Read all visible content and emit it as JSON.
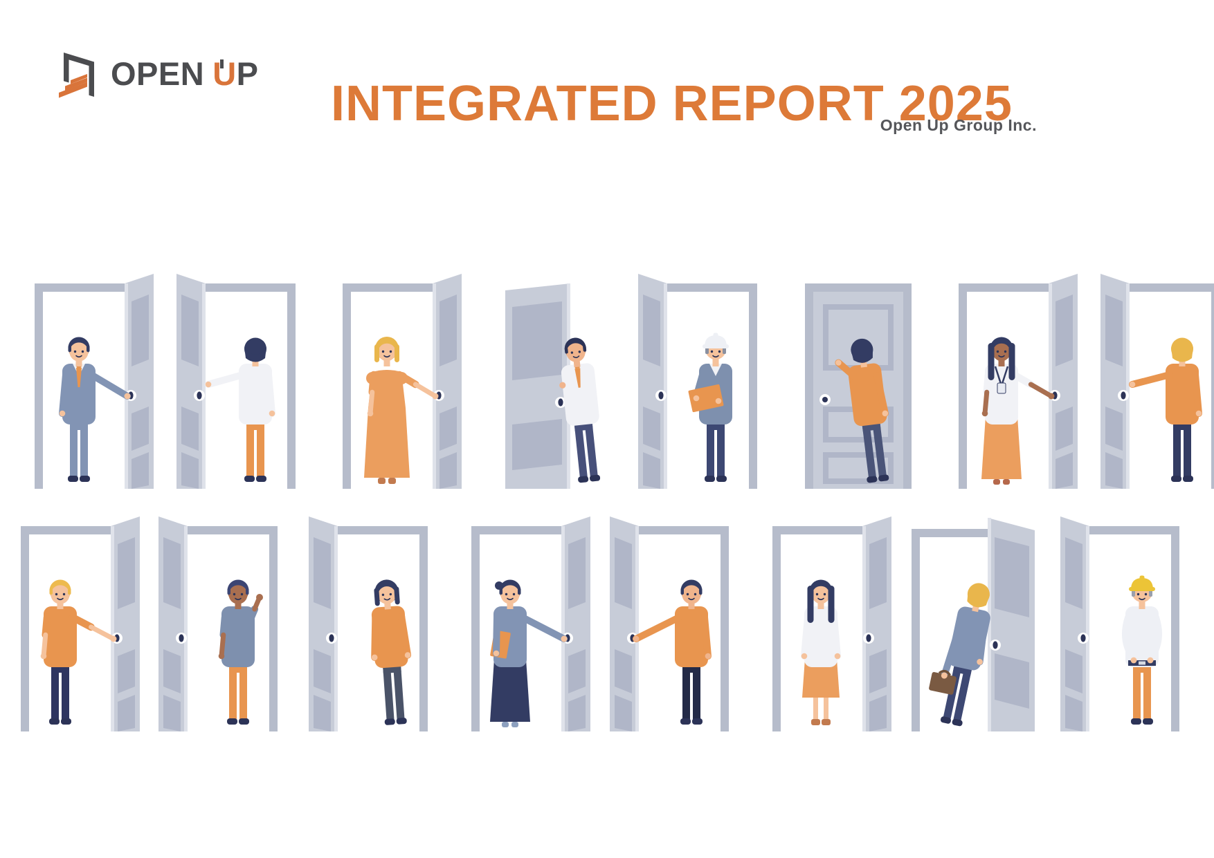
{
  "header": {
    "logo": {
      "icon": "open-door-icon",
      "open": "OPEN",
      "u": "U",
      "p": "P"
    },
    "title": "INTEGRATED REPORT 2025",
    "subtitle": "Open Up Group Inc."
  },
  "palette": {
    "titleOrange": "#dd7a38",
    "logoGray": "#4b4c4f",
    "accentOrange": "#d9743a",
    "doorGray": "#c7ccd8",
    "doorFrame": "#b6bccb",
    "doorPanel": "#b0b6c8",
    "doorEdge": "#dfe2ea",
    "knobDark": "#2c3357",
    "navy": "#333c63",
    "white": "#f1f2f6",
    "orange": "#e8954f",
    "skin": "#f5c29c",
    "skinDark": "#a96f50",
    "suitBlue": "#8294b4",
    "briefcaseBrown": "#7a5a42"
  },
  "scene": {
    "rows": [
      {
        "name": "illustration-row-1",
        "figures": [
          {
            "name": "figure-businessman-opening-door",
            "door": "open-right",
            "pose": "front",
            "hair": "short",
            "hairColor": "#333c63",
            "skin": "#f5c29c",
            "top": "#8294b4",
            "bottom": "#8294b4",
            "bottomType": "pants",
            "shoes": "#2c3357",
            "sleeves": "long",
            "arms": "reach-knob",
            "extras": [
              "white-collar",
              "tie"
            ],
            "personX": 82
          },
          {
            "name": "figure-woman-walking-through-door",
            "door": "open-left",
            "pose": "back",
            "hair": "back",
            "hairColor": "#333c63",
            "skin": "#f5c29c",
            "top": "#f1f2f6",
            "bottom": "#e8954f",
            "bottomType": "pants",
            "shoes": "#2c3357",
            "sleeves": "long",
            "arms": "touch-left",
            "extras": [],
            "personX": 114
          },
          {
            "name": "figure-woman-orange-dress-door",
            "door": "open-right",
            "pose": "front",
            "hair": "bob",
            "hairColor": "#e9b64c",
            "skin": "#f5c29c",
            "top": "#eb9e5e",
            "bottom": "#eb9e5e",
            "bottomType": "dress",
            "shoes": "#c27a4e",
            "sleeves": "short",
            "arms": "reach-knob",
            "extras": [],
            "personX": 82
          },
          {
            "name": "figure-man-peeking-door",
            "door": "peek",
            "pose": "front",
            "hair": "short",
            "hairColor": "#2c3357",
            "skin": "#f0b48c",
            "top": "#f1f2f6",
            "bottom": "#47507a",
            "bottomType": "pants",
            "shoes": "#2c3357",
            "sleeves": "long",
            "arms": "none",
            "extras": [
              "white-collar",
              "tie",
              "grip-left"
            ],
            "personX": 150,
            "rotate": -6
          },
          {
            "name": "figure-worker-hardhat-clipboard",
            "door": "open-left",
            "pose": "front",
            "hair": "hardhat",
            "hairColor": "#8a90a0",
            "hatColor": "#eef0f5",
            "skin": "#f5c29c",
            "top": "#7e90ae",
            "bottom": "#3d4873",
            "bottomType": "pants",
            "shoes": "#2c3357",
            "sleeves": "long",
            "arms": "clipboard",
            "extras": [
              "white-collar"
            ],
            "personX": 112
          },
          {
            "name": "figure-woman-knocking-door",
            "door": "closed",
            "pose": "back",
            "hair": "back",
            "hairColor": "#333c63",
            "skin": "#f5c29c",
            "top": "#e8954f",
            "bottom": "#4a5478",
            "bottomType": "pants",
            "shoes": "#2c3357",
            "sleeves": "long",
            "arms": "knock",
            "extras": [],
            "personX": 122,
            "rotate": -7
          },
          {
            "name": "figure-woman-lanyard-opening-door",
            "door": "open-right",
            "pose": "front",
            "hair": "long",
            "hairColor": "#333c63",
            "skin": "#a96f50",
            "top": "#f1f2f6",
            "bottom": "#eb9e5e",
            "bottomType": "skirt-long",
            "shoes": "#b5684b",
            "sleeves": "short",
            "arms": "reach-knob",
            "extras": [
              "lanyard"
            ],
            "personX": 80
          },
          {
            "name": "figure-person-entering-door",
            "door": "open-left",
            "pose": "back",
            "hair": "back",
            "hairColor": "#e9b64c",
            "skin": "#f5c29c",
            "top": "#e8954f",
            "bottom": "#333c63",
            "bottomType": "pants",
            "shoes": "#2c3357",
            "sleeves": "long",
            "arms": "touch-left",
            "extras": [],
            "personX": 118,
            "cut": "right"
          }
        ]
      },
      {
        "name": "illustration-row-2",
        "figures": [
          {
            "name": "figure-man-polo-opening-door",
            "door": "open-right",
            "pose": "front",
            "hair": "short",
            "hairColor": "#edba4e",
            "skin": "#f5c29c",
            "top": "#e8954f",
            "bottom": "#2e3560",
            "bottomType": "pants",
            "shoes": "#2c3357",
            "sleeves": "short",
            "arms": "reach-knob",
            "extras": [],
            "personX": 75,
            "cut": "left"
          },
          {
            "name": "figure-man-waving-doorway",
            "door": "open-left",
            "pose": "front",
            "hair": "short",
            "hairColor": "#3c4573",
            "skin": "#a96f50",
            "top": "#7e90ae",
            "bottom": "#e8954f",
            "bottomType": "pants",
            "shoes": "#2c3357",
            "sleeves": "short",
            "arms": "wave",
            "extras": [],
            "personX": 115
          },
          {
            "name": "figure-woman-leaning-doorframe",
            "door": "open-left",
            "pose": "front",
            "hair": "bob",
            "hairColor": "#333c63",
            "skin": "#f5c29c",
            "top": "#e8954f",
            "bottom": "#4a5368",
            "bottomType": "pants",
            "shoes": "#2c3357",
            "sleeves": "long",
            "arms": "down",
            "extras": [],
            "personX": 125,
            "rotate": -4
          },
          {
            "name": "figure-woman-carrying-folder-door",
            "door": "open-right",
            "pose": "front",
            "hair": "short",
            "hairColor": "#333c63",
            "skin": "#f5c29c",
            "top": "#8294b4",
            "bottom": "#333c63",
            "bottomType": "skirt-long",
            "shoes": "#8da0bf",
            "sleeves": "long",
            "arms": "folder",
            "extras": [
              "bun"
            ],
            "personX": 74
          },
          {
            "name": "figure-man-orange-shirt-door",
            "door": "open-left",
            "pose": "front",
            "hair": "short",
            "hairColor": "#333c63",
            "skin": "#f0b48c",
            "top": "#e8954f",
            "bottom": "#232a47",
            "bottomType": "pants",
            "shoes": "#2c3357",
            "sleeves": "long",
            "arms": "reach-knob",
            "extras": [],
            "personX": 118
          },
          {
            "name": "figure-woman-blouse-skirt-doorway",
            "door": "open-right",
            "pose": "front",
            "hair": "long",
            "hairColor": "#333c63",
            "skin": "#f5c29c",
            "top": "#f1f2f6",
            "bottom": "#eb9e5e",
            "bottomType": "skirt-knee",
            "shoes": "#c27a4e",
            "sleeves": "long",
            "arms": "down",
            "extras": [],
            "personX": 88
          },
          {
            "name": "figure-person-briefcase-peeking-door",
            "door": "lean",
            "pose": "back",
            "hair": "back",
            "hairColor": "#e9b64c",
            "skin": "#f5c29c",
            "top": "#8294b4",
            "bottom": "#3d4873",
            "bottomType": "pants",
            "shoes": "#2c3357",
            "sleeves": "long",
            "arms": "briefcase",
            "extras": [],
            "personX": 62,
            "rotate": 12
          },
          {
            "name": "figure-worker-yellow-hardhat-doorway",
            "door": "open-left",
            "pose": "front",
            "hair": "hardhat",
            "hairColor": "#9aa0ad",
            "hatColor": "#ecc437",
            "skin": "#f5c29c",
            "top": "#eef0f5",
            "bottom": "#e8954f",
            "bottomType": "pants",
            "shoes": "#2c3357",
            "sleeves": "long",
            "arms": "waist",
            "extras": [
              "belt"
            ],
            "personX": 118
          }
        ]
      }
    ]
  }
}
